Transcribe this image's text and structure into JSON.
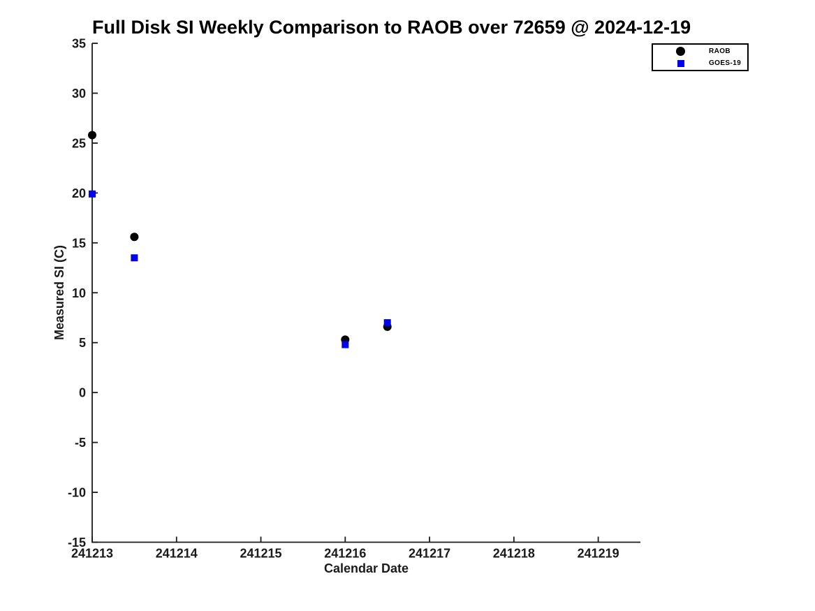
{
  "chart_data": {
    "type": "scatter",
    "title": "Full Disk SI Weekly Comparison to RAOB over 72659 @ 2024-12-19",
    "xlabel": "Calendar Date",
    "ylabel": "Measured SI (C)",
    "xlim": [
      241213,
      241219.5
    ],
    "ylim": [
      -15,
      35
    ],
    "xticks": [
      241213,
      241214,
      241215,
      241216,
      241217,
      241218,
      241219
    ],
    "yticks": [
      35,
      30,
      25,
      20,
      15,
      10,
      5,
      0,
      -5,
      -10,
      -15
    ],
    "grid": false,
    "legend_position": "outside-top-right",
    "axis_color": "#1a1a1a",
    "x": [
      241213.0,
      241213.5,
      241216.0,
      241216.5
    ],
    "series": [
      {
        "name": "RAOB",
        "marker": "circle",
        "color": "#000000",
        "values": [
          25.8,
          15.6,
          5.3,
          6.6
        ]
      },
      {
        "name": "GOES-19",
        "marker": "square",
        "color": "#0000ee",
        "values": [
          19.9,
          13.5,
          4.8,
          7.0
        ]
      }
    ]
  }
}
